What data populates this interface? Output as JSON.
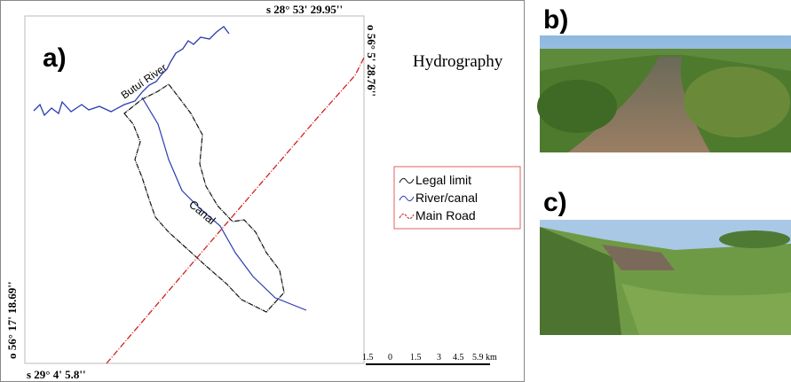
{
  "panels": {
    "a": {
      "label": "a)",
      "title": "Hydrography",
      "coordinates": {
        "top": "s 28° 53' 29.95''",
        "right": "o 56° 5' 28.76''",
        "left": "o 56° 17' 18.69''",
        "bottom": "s 29° 4' 5.8''"
      },
      "features": {
        "river": "Butuí River",
        "canal": "Canal"
      },
      "legend": [
        "Legal limit",
        "River/canal",
        "Main Road"
      ],
      "scale": {
        "ticks": [
          "1.5",
          "0",
          "1.5",
          "3",
          "4.5",
          "5.9"
        ],
        "unit": "km"
      }
    },
    "b": {
      "label": "b)"
    },
    "c": {
      "label": "c)"
    }
  }
}
